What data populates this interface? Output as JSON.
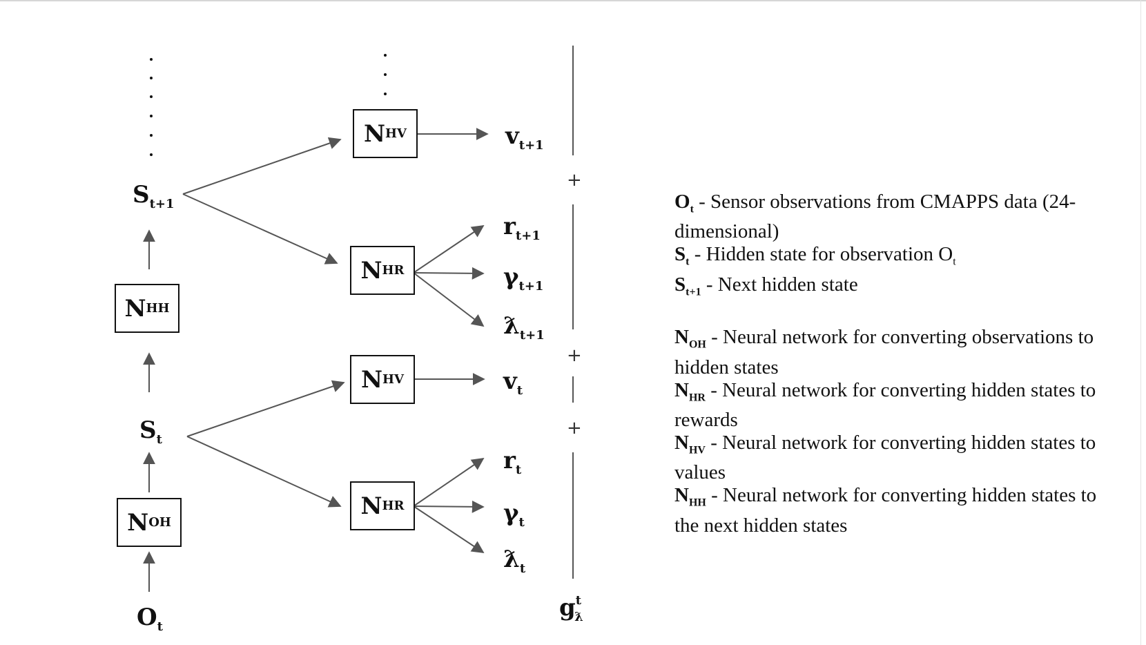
{
  "nodes": {
    "o_t": {
      "base": "O",
      "sub": "t"
    },
    "s_t": {
      "base": "S",
      "sub": "t"
    },
    "s_t1": {
      "base": "S",
      "sub": "t+1"
    },
    "n_oh": {
      "base": "N",
      "sub": "OH"
    },
    "n_hh": {
      "base": "N",
      "sub": "HH"
    },
    "n_hv_t1": {
      "base": "N",
      "sub": "HV"
    },
    "n_hr_t1": {
      "base": "N",
      "sub": "HR"
    },
    "n_hv_t": {
      "base": "N",
      "sub": "HV"
    },
    "n_hr_t": {
      "base": "N",
      "sub": "HR"
    }
  },
  "outputs": {
    "v_t1": {
      "base": "v",
      "sub": "t+1"
    },
    "r_t1": {
      "base": "r",
      "sub": "t+1"
    },
    "gamma_t1": {
      "base": "γ",
      "sub": "t+1"
    },
    "lambda_t1": {
      "base": "ƛ",
      "sub": "t+1"
    },
    "v_t": {
      "base": "v",
      "sub": "t"
    },
    "r_t": {
      "base": "r",
      "sub": "t"
    },
    "gamma_t": {
      "base": "γ",
      "sub": "t"
    },
    "lambda_t": {
      "base": "ƛ",
      "sub": "t"
    }
  },
  "return_label": {
    "base": "g",
    "sup": "t",
    "sub": "ƛ"
  },
  "plus_sign": "+",
  "legend": [
    {
      "sym": "O",
      "sub": "t",
      "text": " - Sensor observations  from CMAPPS data (24-dimensional)"
    },
    {
      "sym": "S",
      "sub": "t",
      "text": " - Hidden state for observation O",
      "tail_sub": "t"
    },
    {
      "sym": "S",
      "sub": "t+1",
      "text": " - Next hidden state"
    },
    {
      "sym": "N",
      "sub": "OH",
      "text": " - Neural network for converting observations to hidden states"
    },
    {
      "sym": "N",
      "sub": "HR",
      "text": " - Neural network for converting hidden states to rewards"
    },
    {
      "sym": "N",
      "sub": "HV",
      "text": " - Neural network for converting hidden states to values"
    },
    {
      "sym": "N",
      "sub": "HH",
      "text": " - Neural network for converting hidden states to the next hidden states"
    }
  ]
}
